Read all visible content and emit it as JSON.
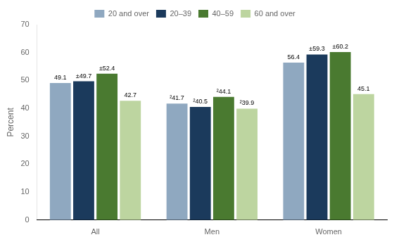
{
  "chart_data": {
    "type": "bar",
    "categories": [
      "All",
      "Men",
      "Women"
    ],
    "series": [
      {
        "name": "20 and over",
        "color": "#8fa8c0",
        "values": [
          49.1,
          41.7,
          56.4
        ],
        "value_labels": [
          "49.1",
          "²41.7",
          "56.4"
        ]
      },
      {
        "name": "20–39",
        "color": "#1b3a5c",
        "values": [
          49.7,
          40.5,
          59.3
        ],
        "value_labels": [
          "±49.7",
          "²40.5",
          "±59.3"
        ]
      },
      {
        "name": "40–59",
        "color": "#4a7a30",
        "values": [
          52.4,
          44.1,
          60.2
        ],
        "value_labels": [
          "±52.4",
          "²44.1",
          "±60.2"
        ]
      },
      {
        "name": "60 and over",
        "color": "#bdd5a0",
        "values": [
          42.7,
          39.9,
          45.1
        ],
        "value_labels": [
          "42.7",
          "²39.9",
          "45.1"
        ]
      }
    ],
    "ylabel": "Percent",
    "ylim": [
      0,
      70
    ],
    "yticks": [
      0,
      10,
      20,
      30,
      40,
      50,
      60,
      70
    ],
    "grid": false,
    "legend": "top",
    "data_labels": true
  }
}
